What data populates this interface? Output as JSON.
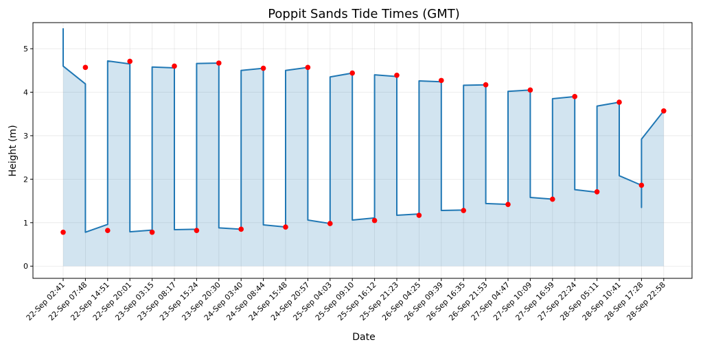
{
  "chart_data": {
    "type": "line",
    "title": "Poppit Sands Tide Times (GMT)",
    "xlabel": "Date",
    "ylabel": "Height (m)",
    "ylim": [
      -0.28,
      5.6
    ],
    "yticks": [
      0,
      1,
      2,
      3,
      4,
      5
    ],
    "grid": true,
    "categories": [
      "22-Sep 02:41",
      "22-Sep 07:48",
      "22-Sep 14:51",
      "22-Sep 20:01",
      "23-Sep 03:15",
      "23-Sep 08:17",
      "23-Sep 15:24",
      "23-Sep 20:30",
      "24-Sep 03:40",
      "24-Sep 08:44",
      "24-Sep 15:48",
      "24-Sep 20:57",
      "25-Sep 04:03",
      "25-Sep 09:10",
      "25-Sep 16:12",
      "25-Sep 21:23",
      "26-Sep 04:25",
      "26-Sep 09:39",
      "26-Sep 16:35",
      "26-Sep 21:53",
      "27-Sep 04:47",
      "27-Sep 10:09",
      "27-Sep 16:59",
      "27-Sep 22:24",
      "28-Sep 05:11",
      "28-Sep 10:41",
      "28-Sep 17:28",
      "28-Sep 22:58"
    ],
    "series": [
      {
        "type": "scatter",
        "color": "#ff0000",
        "values": [
          0.78,
          4.57,
          0.82,
          4.71,
          0.78,
          4.6,
          0.82,
          4.67,
          0.85,
          4.55,
          0.9,
          4.57,
          0.98,
          4.44,
          1.05,
          4.39,
          1.17,
          4.27,
          1.28,
          4.17,
          1.42,
          4.05,
          1.54,
          3.9,
          1.71,
          3.77,
          1.86,
          3.57
        ]
      },
      {
        "type": "line-with-fill",
        "color": "#1f77b4",
        "fill_color": "#1f77b4",
        "fill_opacity": 0.2,
        "points": [
          [
            0,
            5.47
          ],
          [
            0,
            4.6
          ],
          [
            1,
            4.19
          ],
          [
            1,
            0.78
          ],
          [
            2,
            0.96
          ],
          [
            2,
            4.72
          ],
          [
            3,
            4.65
          ],
          [
            3,
            0.79
          ],
          [
            4,
            0.83
          ],
          [
            4,
            4.58
          ],
          [
            5,
            4.56
          ],
          [
            5,
            0.84
          ],
          [
            6,
            0.85
          ],
          [
            6,
            4.66
          ],
          [
            7,
            4.67
          ],
          [
            7,
            0.88
          ],
          [
            8,
            0.85
          ],
          [
            8,
            4.5
          ],
          [
            9,
            4.55
          ],
          [
            9,
            0.95
          ],
          [
            10,
            0.9
          ],
          [
            10,
            4.5
          ],
          [
            11,
            4.57
          ],
          [
            11,
            1.06
          ],
          [
            12,
            0.98
          ],
          [
            12,
            4.35
          ],
          [
            13,
            4.44
          ],
          [
            13,
            1.06
          ],
          [
            14,
            1.11
          ],
          [
            14,
            4.4
          ],
          [
            15,
            4.36
          ],
          [
            15,
            1.17
          ],
          [
            16,
            1.2
          ],
          [
            16,
            4.26
          ],
          [
            17,
            4.24
          ],
          [
            17,
            1.28
          ],
          [
            18,
            1.29
          ],
          [
            18,
            4.16
          ],
          [
            19,
            4.17
          ],
          [
            19,
            1.44
          ],
          [
            20,
            1.42
          ],
          [
            20,
            4.02
          ],
          [
            21,
            4.05
          ],
          [
            21,
            1.58
          ],
          [
            22,
            1.54
          ],
          [
            22,
            3.85
          ],
          [
            23,
            3.9
          ],
          [
            23,
            1.76
          ],
          [
            24,
            1.7
          ],
          [
            24,
            3.68
          ],
          [
            25,
            3.77
          ],
          [
            25,
            2.08
          ],
          [
            26,
            1.86
          ],
          [
            26,
            1.35
          ],
          [
            26,
            2.92
          ],
          [
            27,
            3.57
          ]
        ]
      }
    ]
  }
}
